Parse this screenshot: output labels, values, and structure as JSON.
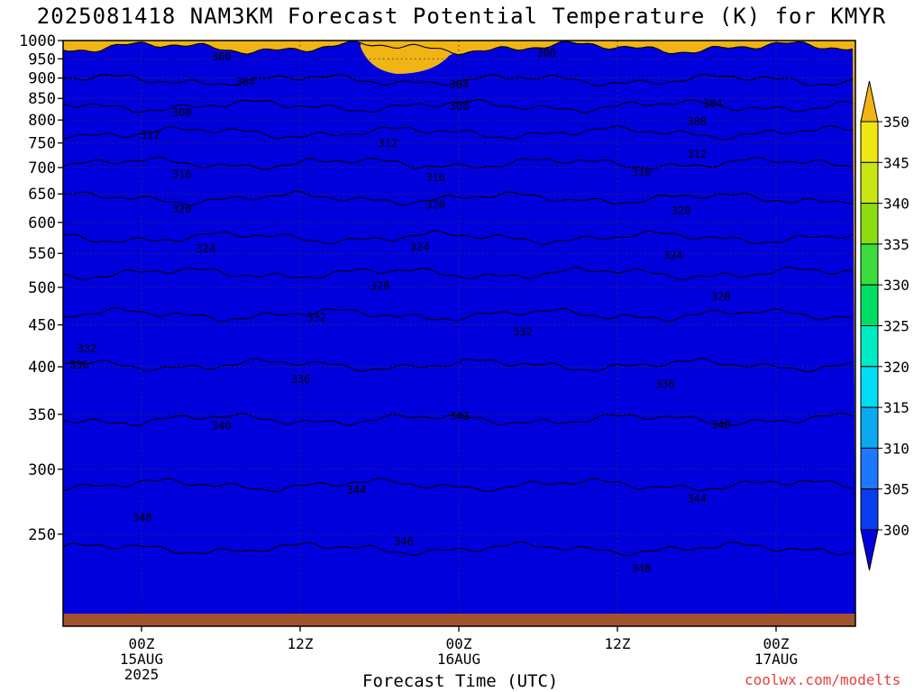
{
  "chart_data": {
    "type": "heatmap",
    "title": "2025081418 NAM3KM Forecast Potential Temperature (K) for KMYR",
    "xlabel": "Forecast Time (UTC)",
    "ylabel": "",
    "credit": "coolwx.com/modelts",
    "yaxis": {
      "scale": "log-pressure",
      "direction": "decreasing-upward",
      "ticks": [
        250,
        300,
        350,
        400,
        450,
        500,
        550,
        600,
        650,
        700,
        750,
        800,
        850,
        900,
        950,
        1000
      ],
      "range": [
        1000,
        200
      ]
    },
    "xaxis": {
      "ticks": [
        {
          "label": "00Z",
          "sub1": "15AUG",
          "sub2": "2025"
        },
        {
          "label": "12Z",
          "sub1": "",
          "sub2": ""
        },
        {
          "label": "00Z",
          "sub1": "16AUG",
          "sub2": ""
        },
        {
          "label": "12Z",
          "sub1": "",
          "sub2": ""
        },
        {
          "label": "00Z",
          "sub1": "17AUG",
          "sub2": ""
        }
      ]
    },
    "grid": true,
    "colorbar": {
      "position": "right",
      "levels": [
        300,
        305,
        310,
        315,
        320,
        325,
        330,
        335,
        340,
        345,
        350
      ],
      "colors": [
        "#0000dd",
        "#0a3cf0",
        "#1e78ff",
        "#0aaaf0",
        "#00ddf5",
        "#00ebc3",
        "#00dd64",
        "#3cdc3c",
        "#8cdc14",
        "#c8e614",
        "#f0e614",
        "#f0b414"
      ]
    },
    "contours": [
      {
        "value": 300,
        "pressure": 980
      },
      {
        "value": 304,
        "pressure": 895
      },
      {
        "value": 308,
        "pressure": 832
      },
      {
        "value": 312,
        "pressure": 772
      },
      {
        "value": 316,
        "pressure": 708
      },
      {
        "value": 320,
        "pressure": 642
      },
      {
        "value": 324,
        "pressure": 575
      },
      {
        "value": 328,
        "pressure": 520
      },
      {
        "value": 332,
        "pressure": 463
      },
      {
        "value": 336,
        "pressure": 402
      },
      {
        "value": 340,
        "pressure": 345
      },
      {
        "value": 344,
        "pressure": 287
      },
      {
        "value": 348,
        "pressure": 240
      }
    ],
    "contour_labels": [
      {
        "text": "348",
        "t": 0.1,
        "p": 262
      },
      {
        "text": "348",
        "t": 0.43,
        "p": 245
      },
      {
        "text": "348",
        "t": 0.73,
        "p": 227
      },
      {
        "text": "344",
        "t": 0.37,
        "p": 283
      },
      {
        "text": "344",
        "t": 0.8,
        "p": 276
      },
      {
        "text": "340",
        "t": 0.2,
        "p": 339
      },
      {
        "text": "340",
        "t": 0.5,
        "p": 348
      },
      {
        "text": "340",
        "t": 0.83,
        "p": 340
      },
      {
        "text": "336",
        "t": 0.02,
        "p": 402
      },
      {
        "text": "336",
        "t": 0.3,
        "p": 386
      },
      {
        "text": "336",
        "t": 0.76,
        "p": 381
      },
      {
        "text": "332",
        "t": 0.03,
        "p": 421
      },
      {
        "text": "332",
        "t": 0.32,
        "p": 459
      },
      {
        "text": "332",
        "t": 0.58,
        "p": 441
      },
      {
        "text": "328",
        "t": 0.4,
        "p": 502
      },
      {
        "text": "328",
        "t": 0.83,
        "p": 487
      },
      {
        "text": "324",
        "t": 0.18,
        "p": 557
      },
      {
        "text": "324",
        "t": 0.45,
        "p": 560
      },
      {
        "text": "324",
        "t": 0.77,
        "p": 547
      },
      {
        "text": "320",
        "t": 0.15,
        "p": 623
      },
      {
        "text": "320",
        "t": 0.47,
        "p": 630
      },
      {
        "text": "320",
        "t": 0.78,
        "p": 620
      },
      {
        "text": "316",
        "t": 0.15,
        "p": 687
      },
      {
        "text": "316",
        "t": 0.47,
        "p": 681
      },
      {
        "text": "316",
        "t": 0.73,
        "p": 690
      },
      {
        "text": "312",
        "t": 0.11,
        "p": 767
      },
      {
        "text": "312",
        "t": 0.41,
        "p": 749
      },
      {
        "text": "312",
        "t": 0.8,
        "p": 727
      },
      {
        "text": "308",
        "t": 0.15,
        "p": 817
      },
      {
        "text": "308",
        "t": 0.5,
        "p": 832
      },
      {
        "text": "308",
        "t": 0.8,
        "p": 796
      },
      {
        "text": "304",
        "t": 0.23,
        "p": 890
      },
      {
        "text": "304",
        "t": 0.5,
        "p": 883
      },
      {
        "text": "304",
        "t": 0.82,
        "p": 838
      },
      {
        "text": "300",
        "t": 0.2,
        "p": 955
      },
      {
        "text": "300",
        "t": 0.61,
        "p": 965
      }
    ]
  }
}
